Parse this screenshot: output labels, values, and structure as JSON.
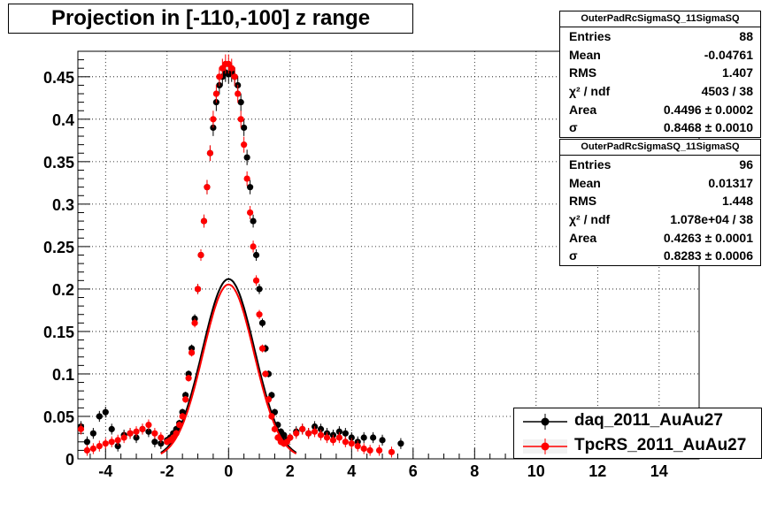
{
  "title": "Projection in [-110,-100] z range",
  "stats": [
    {
      "name": "OuterPadRcSigmaSQ_11SigmaSQ",
      "rows": [
        {
          "label": "Entries",
          "value": "88"
        },
        {
          "label": "Mean",
          "value": "-0.04761"
        },
        {
          "label": "RMS",
          "value": "1.407"
        },
        {
          "label": "χ² / ndf",
          "value": "4503 / 38"
        },
        {
          "label": "Area",
          "value": "0.4496 ± 0.0002"
        },
        {
          "label": "σ",
          "value": "0.8468 ± 0.0010"
        }
      ]
    },
    {
      "name": "OuterPadRcSigmaSQ_11SigmaSQ",
      "rows": [
        {
          "label": "Entries",
          "value": "96"
        },
        {
          "label": "Mean",
          "value": "0.01317"
        },
        {
          "label": "RMS",
          "value": "1.448"
        },
        {
          "label": "χ² / ndf",
          "value": "1.078e+04 / 38"
        },
        {
          "label": "Area",
          "value": "0.4263 ± 0.0001"
        },
        {
          "label": "σ",
          "value": "0.8283 ± 0.0006"
        }
      ]
    }
  ],
  "legend": [
    {
      "label": "daq_2011_AuAu27",
      "color": "#000000"
    },
    {
      "label": "TpcRS_2011_AuAu27",
      "color": "#ff0000"
    }
  ],
  "chart_data": {
    "type": "scatter",
    "title": "Projection in [-110,-100] z range",
    "xlabel": "",
    "ylabel": "",
    "xlim": [
      -4.9,
      15.3
    ],
    "ylim": [
      0,
      0.48
    ],
    "xticks": [
      -4,
      -2,
      0,
      2,
      4,
      6,
      8,
      10,
      12,
      14
    ],
    "yticks": [
      0,
      0.05,
      0.1,
      0.15,
      0.2,
      0.25,
      0.3,
      0.35,
      0.4,
      0.45
    ],
    "xtick_labels": [
      "-4",
      "-2",
      "0",
      "2",
      "4",
      "6",
      "8",
      "10",
      "12",
      "14"
    ],
    "ytick_labels": [
      "0",
      "0.05",
      "0.1",
      "0.15",
      "0.2",
      "0.25",
      "0.3",
      "0.35",
      "0.4",
      "0.45"
    ],
    "grid": true,
    "legend_position": "bottom-right",
    "series": [
      {
        "name": "daq_2011_AuAu27",
        "color": "#000000",
        "fit_area": 0.4496,
        "fit_sigma": 0.8468,
        "x": [
          -4.8,
          -4.6,
          -4.4,
          -4.2,
          -4.0,
          -3.8,
          -3.6,
          -3.4,
          -3.2,
          -3.0,
          -2.8,
          -2.6,
          -2.4,
          -2.2,
          -2.0,
          -1.9,
          -1.8,
          -1.7,
          -1.6,
          -1.5,
          -1.4,
          -1.3,
          -1.2,
          -1.1,
          -1.0,
          -0.9,
          -0.8,
          -0.7,
          -0.6,
          -0.5,
          -0.4,
          -0.3,
          -0.2,
          -0.1,
          0.0,
          0.1,
          0.2,
          0.3,
          0.4,
          0.5,
          0.6,
          0.7,
          0.8,
          0.9,
          1.0,
          1.1,
          1.2,
          1.3,
          1.4,
          1.5,
          1.6,
          1.7,
          1.8,
          1.9,
          2.0,
          2.2,
          2.4,
          2.6,
          2.8,
          3.0,
          3.2,
          3.4,
          3.6,
          3.8,
          4.0,
          4.2,
          4.4,
          4.7,
          5.0,
          5.6
        ],
        "y": [
          0.038,
          0.02,
          0.03,
          0.05,
          0.055,
          0.035,
          0.015,
          0.028,
          0.03,
          0.025,
          0.035,
          0.032,
          0.02,
          0.018,
          0.022,
          0.025,
          0.03,
          0.035,
          0.042,
          0.055,
          0.075,
          0.1,
          0.13,
          0.165,
          0.2,
          0.24,
          0.28,
          0.32,
          0.36,
          0.39,
          0.42,
          0.44,
          0.45,
          0.455,
          0.453,
          0.455,
          0.45,
          0.44,
          0.42,
          0.39,
          0.355,
          0.32,
          0.28,
          0.24,
          0.2,
          0.16,
          0.13,
          0.1,
          0.075,
          0.055,
          0.04,
          0.032,
          0.028,
          0.022,
          0.025,
          0.032,
          0.035,
          0.03,
          0.038,
          0.035,
          0.03,
          0.028,
          0.032,
          0.03,
          0.025,
          0.02,
          0.025,
          0.025,
          0.022,
          0.018
        ]
      },
      {
        "name": "TpcRS_2011_AuAu27",
        "color": "#ff0000",
        "fit_area": 0.4263,
        "fit_sigma": 0.8283,
        "x": [
          -4.8,
          -4.6,
          -4.4,
          -4.2,
          -4.0,
          -3.8,
          -3.6,
          -3.4,
          -3.2,
          -3.0,
          -2.8,
          -2.6,
          -2.4,
          -2.2,
          -2.0,
          -1.9,
          -1.8,
          -1.7,
          -1.6,
          -1.5,
          -1.4,
          -1.3,
          -1.2,
          -1.1,
          -1.0,
          -0.9,
          -0.8,
          -0.7,
          -0.6,
          -0.5,
          -0.4,
          -0.3,
          -0.2,
          -0.1,
          0.0,
          0.1,
          0.2,
          0.3,
          0.4,
          0.5,
          0.6,
          0.7,
          0.8,
          0.9,
          1.0,
          1.1,
          1.2,
          1.3,
          1.4,
          1.5,
          1.6,
          1.7,
          1.8,
          1.9,
          2.0,
          2.2,
          2.4,
          2.6,
          2.8,
          3.0,
          3.2,
          3.4,
          3.6,
          3.8,
          4.0,
          4.2,
          4.4,
          4.6,
          4.9,
          5.3
        ],
        "y": [
          0.035,
          0.01,
          0.012,
          0.015,
          0.018,
          0.02,
          0.022,
          0.025,
          0.03,
          0.032,
          0.035,
          0.04,
          0.03,
          0.025,
          0.02,
          0.022,
          0.025,
          0.03,
          0.04,
          0.05,
          0.07,
          0.095,
          0.125,
          0.16,
          0.2,
          0.24,
          0.28,
          0.32,
          0.36,
          0.4,
          0.43,
          0.45,
          0.46,
          0.465,
          0.465,
          0.46,
          0.45,
          0.43,
          0.4,
          0.37,
          0.33,
          0.29,
          0.25,
          0.21,
          0.17,
          0.13,
          0.1,
          0.07,
          0.05,
          0.035,
          0.025,
          0.02,
          0.018,
          0.02,
          0.025,
          0.03,
          0.035,
          0.03,
          0.032,
          0.028,
          0.025,
          0.022,
          0.025,
          0.02,
          0.018,
          0.015,
          0.012,
          0.01,
          0.01,
          0.008
        ]
      }
    ]
  }
}
